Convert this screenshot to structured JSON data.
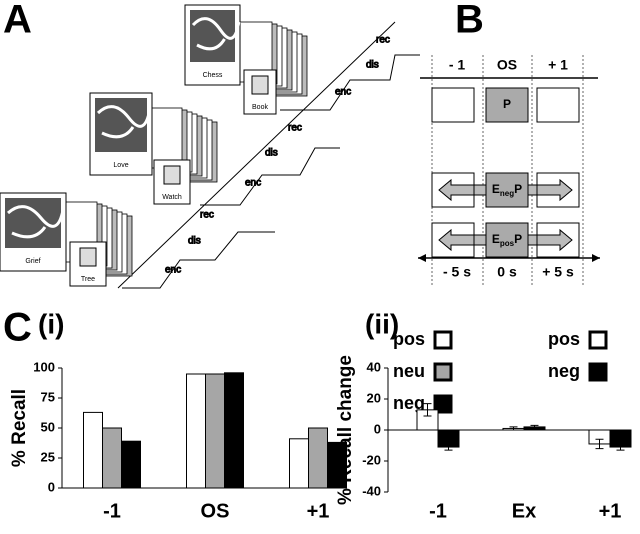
{
  "panels": {
    "a": "A",
    "b": "B",
    "c": "C",
    "ci": "(i)",
    "cii": "(ii)"
  },
  "panel_a": {
    "pictures": [
      "Chess",
      "Love",
      "Grief"
    ],
    "objects": [
      "Book",
      "Watch",
      "Tree"
    ],
    "stages": [
      [
        "rec",
        "dis",
        "enc"
      ],
      [
        "rec",
        "dis",
        "enc"
      ],
      [
        "rec",
        "dis",
        "enc"
      ]
    ]
  },
  "panel_b": {
    "columns": [
      "- 1",
      "OS",
      "+ 1"
    ],
    "rows": [
      [
        "P"
      ],
      [
        "E",
        "neg",
        "P"
      ],
      [
        "E",
        "pos",
        "P"
      ]
    ],
    "times": [
      "- 5 s",
      "0 s",
      "+ 5 s"
    ]
  },
  "chart_data": [
    {
      "type": "bar",
      "y_label": "% Recall",
      "categories": [
        "-1",
        "OS",
        "+1"
      ],
      "series": [
        {
          "name": "pos",
          "color": "#ffffff",
          "values": [
            63,
            95,
            41
          ]
        },
        {
          "name": "neu",
          "color": "#a6a6a6",
          "values": [
            50,
            95,
            50
          ]
        },
        {
          "name": "neg",
          "color": "#000000",
          "values": [
            39,
            96,
            38
          ]
        }
      ],
      "ylim": [
        0,
        100
      ],
      "yticks": [
        0,
        25,
        50,
        75,
        100
      ]
    },
    {
      "type": "bar",
      "y_label": "% Recall change",
      "categories": [
        "-1",
        "Ex",
        "+1"
      ],
      "series": [
        {
          "name": "pos",
          "color": "#ffffff",
          "values": [
            13,
            1,
            -9
          ],
          "errors": [
            4,
            1,
            3
          ]
        },
        {
          "name": "neg",
          "color": "#000000",
          "values": [
            -11,
            2,
            -11
          ],
          "errors": [
            2,
            1,
            2
          ]
        }
      ],
      "ylim": [
        -40,
        40
      ],
      "yticks": [
        -40,
        -20,
        0,
        20,
        40
      ]
    }
  ]
}
